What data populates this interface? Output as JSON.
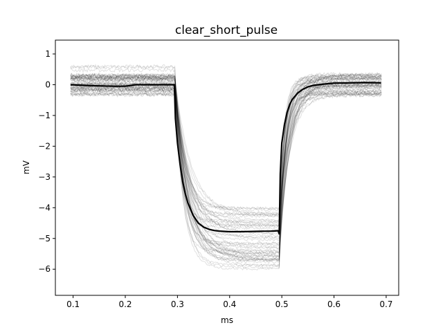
{
  "chart_data": {
    "type": "line",
    "title": "clear_short_pulse",
    "xlabel": "ms",
    "ylabel": "mV",
    "xlim": [
      0.066,
      0.724
    ],
    "ylim": [
      -6.85,
      1.45
    ],
    "x_ticks": [
      0.1,
      0.2,
      0.3,
      0.4,
      0.5,
      0.6,
      0.7
    ],
    "x_tick_labels": [
      "0.1",
      "0.2",
      "0.3",
      "0.4",
      "0.5",
      "0.6",
      "0.7"
    ],
    "y_ticks": [
      1,
      0,
      -1,
      -2,
      -3,
      -4,
      -5,
      -6
    ],
    "y_tick_labels": [
      "1",
      "0",
      "−1",
      "−2",
      "−3",
      "−4",
      "−5",
      "−6"
    ],
    "grid": false,
    "legend": "none",
    "colors": {
      "mean_trace": "#000000",
      "individual_traces": "#000000"
    },
    "mean_trace": {
      "x": [
        0.095,
        0.12,
        0.15,
        0.18,
        0.2,
        0.22,
        0.25,
        0.28,
        0.294,
        0.296,
        0.3,
        0.305,
        0.31,
        0.315,
        0.32,
        0.33,
        0.34,
        0.35,
        0.36,
        0.37,
        0.38,
        0.4,
        0.42,
        0.45,
        0.48,
        0.493,
        0.495,
        0.497,
        0.5,
        0.505,
        0.51,
        0.515,
        0.52,
        0.53,
        0.54,
        0.55,
        0.56,
        0.58,
        0.6,
        0.63,
        0.66,
        0.69
      ],
      "y": [
        0.0,
        -0.02,
        -0.04,
        -0.05,
        -0.05,
        0.0,
        0.0,
        0.0,
        0.0,
        -1.1,
        -1.9,
        -2.6,
        -3.15,
        -3.55,
        -3.85,
        -4.25,
        -4.5,
        -4.63,
        -4.7,
        -4.74,
        -4.76,
        -4.78,
        -4.78,
        -4.77,
        -4.76,
        -4.75,
        -4.85,
        -2.9,
        -1.9,
        -1.3,
        -0.9,
        -0.65,
        -0.48,
        -0.28,
        -0.15,
        -0.07,
        -0.02,
        0.02,
        0.05,
        0.06,
        0.07,
        0.06
      ]
    },
    "individual_traces": {
      "count": 50,
      "baseline_spread": [
        -0.6,
        1.0
      ],
      "plateau_range": [
        -6.3,
        -3.9
      ],
      "description_of_envelope": "faint gray traces surround the mean trace"
    }
  }
}
